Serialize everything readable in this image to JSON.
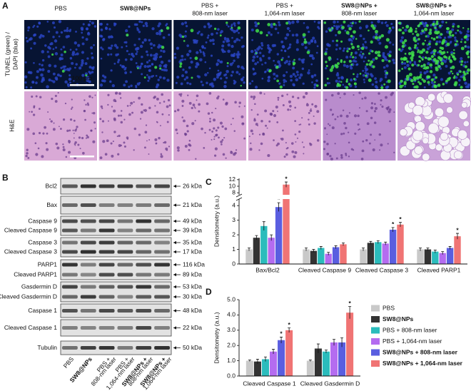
{
  "figure": {
    "panel_a": {
      "label": "A",
      "columns": [
        [
          "PBS"
        ],
        [
          "SW8@NPs"
        ],
        [
          "PBS +",
          "808-nm laser"
        ],
        [
          "PBS +",
          "1,064-nm laser"
        ],
        [
          "SW8@NPs +",
          "808-nm laser"
        ],
        [
          "SW8@NPs +",
          "1,064-nm laser"
        ]
      ],
      "rows": [
        [
          "TUNEL (green) /",
          "DAPI (blue)"
        ],
        [
          "H&E"
        ]
      ],
      "scale_bar": "100 μm"
    },
    "panel_b": {
      "label": "B",
      "blots": [
        {
          "labels": [
            "Bcl2"
          ],
          "sizes": [
            "26 kDa"
          ]
        },
        {
          "labels": [
            "Bax"
          ],
          "sizes": [
            "21 kDa"
          ]
        },
        {
          "labels": [
            "Caspase 9",
            "Cleaved Caspase 9"
          ],
          "sizes": [
            "49 kDa",
            "39 kDa"
          ]
        },
        {
          "labels": [
            "Caspase 3",
            "Cleaved Caspase 3"
          ],
          "sizes": [
            "35 kDa",
            "17 kDa"
          ]
        },
        {
          "labels": [
            "PARP1",
            "Cleaved PARP1"
          ],
          "sizes": [
            "116 kDa",
            "89 kDa"
          ]
        },
        {
          "labels": [
            "Gasdermin D",
            "Cleaved Gasdermin D"
          ],
          "sizes": [
            "53 kDa",
            "30 kDa"
          ]
        },
        {
          "labels": [
            "Caspase 1"
          ],
          "sizes": [
            "48 kDa"
          ]
        },
        {
          "labels": [
            "Cleaved Caspase 1"
          ],
          "sizes": [
            "22 kDa"
          ]
        },
        {
          "labels": [
            "Tubulin"
          ],
          "sizes": [
            "50 kDa"
          ]
        }
      ],
      "lanes": [
        [
          "PBS"
        ],
        [
          "SW8@NPs"
        ],
        [
          "PBS +",
          "808-nm laser"
        ],
        [
          "PBS +",
          "1,064-nm laser"
        ],
        [
          "SW8@NPs +",
          "808-nm laser"
        ],
        [
          "SW8@NPs +",
          "1,064-nm laser"
        ]
      ]
    }
  },
  "chart_data": [
    {
      "type": "bar",
      "panel": "C",
      "y_label": "Densitometry (a.u.)",
      "categories": [
        "Bax/Bcl2",
        "Cleaved Caspase 9",
        "Cleaved Caspase 3",
        "Cleaved PARP1"
      ],
      "series": [
        {
          "color": "#c9c9c9",
          "values": [
            1.0,
            1.0,
            1.0,
            1.0
          ],
          "errors": [
            0.1,
            0.1,
            0.1,
            0.1
          ],
          "significance": [
            null,
            null,
            null,
            null
          ]
        },
        {
          "color": "#333333",
          "values": [
            1.8,
            0.9,
            1.45,
            1.0
          ],
          "errors": [
            0.15,
            0.1,
            0.1,
            0.1
          ],
          "significance": [
            null,
            null,
            null,
            null
          ]
        },
        {
          "color": "#2bbcbc",
          "values": [
            2.6,
            1.1,
            1.5,
            0.85
          ],
          "errors": [
            0.3,
            0.1,
            0.1,
            0.1
          ],
          "significance": [
            null,
            null,
            null,
            null
          ]
        },
        {
          "color": "#b46cf0",
          "values": [
            1.8,
            0.7,
            1.4,
            0.75
          ],
          "errors": [
            0.2,
            0.1,
            0.1,
            0.1
          ],
          "significance": [
            null,
            null,
            null,
            null
          ]
        },
        {
          "color": "#5a5ee0",
          "values": [
            3.9,
            1.15,
            2.35,
            1.1
          ],
          "errors": [
            0.3,
            0.1,
            0.15,
            0.1
          ],
          "significance": [
            "*",
            null,
            "*",
            null
          ]
        },
        {
          "color": "#f07474",
          "values": [
            10.5,
            1.35,
            2.7,
            1.9
          ],
          "errors": [
            0.8,
            0.1,
            0.15,
            0.2
          ],
          "significance": [
            "*",
            null,
            "*",
            "*"
          ]
        }
      ],
      "ylim": [
        0,
        4.4
      ],
      "yticks": [
        0,
        1,
        2,
        3,
        4
      ],
      "axis_break": {
        "ylim": [
          7.6,
          12.4
        ],
        "yticks": [
          8,
          10,
          12
        ]
      }
    },
    {
      "type": "bar",
      "panel": "D",
      "y_label": "Densitometry (a.u.)",
      "categories": [
        "Cleaved Caspase 1",
        "Cleaved Gasdermin D"
      ],
      "series": [
        {
          "name": "PBS",
          "color": "#c9c9c9",
          "values": [
            1.0,
            1.0
          ],
          "errors": [
            0.05,
            0.05
          ],
          "significance": [
            null,
            null
          ]
        },
        {
          "name": "SW8@NPs",
          "color": "#333333",
          "values": [
            0.95,
            1.8
          ],
          "errors": [
            0.15,
            0.3
          ],
          "significance": [
            null,
            null
          ]
        },
        {
          "name": "PBS + 808-nm laser",
          "color": "#2bbcbc",
          "values": [
            1.1,
            1.6
          ],
          "errors": [
            0.15,
            0.1
          ],
          "significance": [
            null,
            null
          ]
        },
        {
          "name": "PBS + 1,064-nm laser",
          "color": "#b46cf0",
          "values": [
            1.6,
            2.2
          ],
          "errors": [
            0.15,
            0.2
          ],
          "significance": [
            null,
            null
          ]
        },
        {
          "name": "SW8@NPs + 808-nm laser",
          "color": "#5a5ee0",
          "values": [
            2.35,
            2.2
          ],
          "errors": [
            0.2,
            0.3
          ],
          "significance": [
            "*",
            null
          ]
        },
        {
          "name": "SW8@NPs + 1,064-nm laser",
          "color": "#f07474",
          "values": [
            3.0,
            4.15
          ],
          "errors": [
            0.15,
            0.4
          ],
          "significance": [
            "*",
            "*"
          ]
        }
      ],
      "ylim": [
        0,
        5
      ],
      "yticks": [
        {
          "value": 0,
          "label": "0.0"
        },
        {
          "value": 1,
          "label": "1.0"
        },
        {
          "value": 2,
          "label": "2.0"
        },
        {
          "value": 3,
          "label": "3.0"
        },
        {
          "value": 4,
          "label": "4.0"
        },
        {
          "value": 5,
          "label": "5.0"
        }
      ],
      "legend": "right"
    }
  ]
}
